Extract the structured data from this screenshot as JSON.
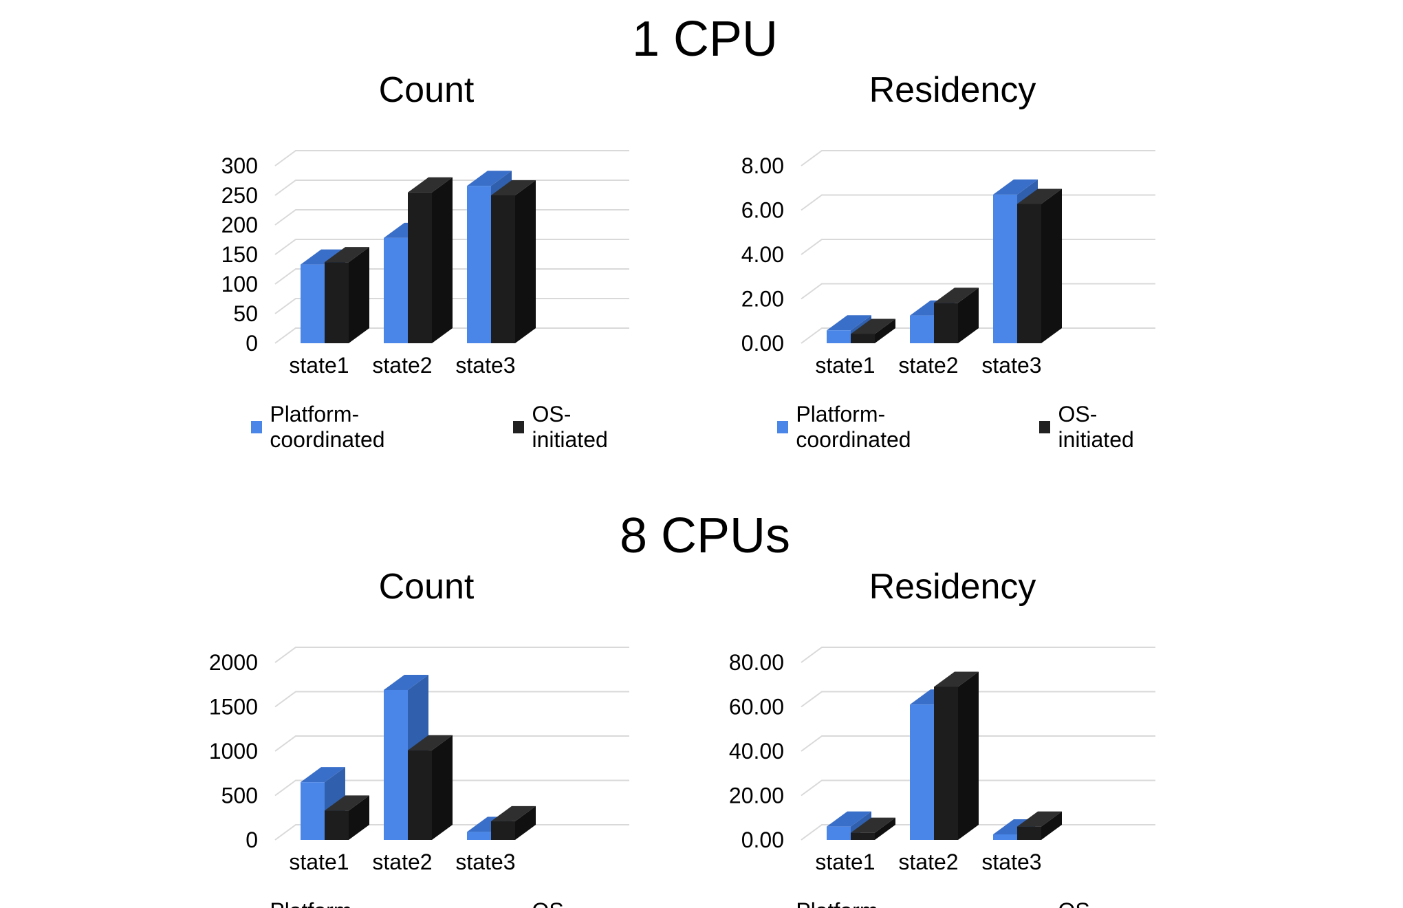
{
  "sections": [
    {
      "title": "1 CPU"
    },
    {
      "title": "8 CPUs"
    }
  ],
  "legend": {
    "items": [
      {
        "label": "Platform-coordinated",
        "color": "#4a86e8"
      },
      {
        "label": "OS-initiated",
        "color": "#212121"
      }
    ]
  },
  "colors": {
    "platform_front": "#4a86e8",
    "platform_top": "#3a6fc9",
    "platform_side": "#3060ad",
    "os_front": "#1d1d1d",
    "os_top": "#2f2f2f",
    "os_side": "#101010",
    "gridline": "#d9d9d9",
    "text": "#000000",
    "background": "#ffffff"
  },
  "chart_data": [
    {
      "type": "bar",
      "style": "3d-column",
      "group": "1 CPU",
      "title": "Count",
      "categories": [
        "state1",
        "state2",
        "state3"
      ],
      "series": [
        {
          "name": "Platform-coordinated",
          "values": [
            133,
            178,
            266
          ]
        },
        {
          "name": "OS-initiated",
          "values": [
            137,
            255,
            250
          ]
        }
      ],
      "ylim": [
        0,
        300
      ],
      "y_tick_labels": [
        "300",
        "250",
        "200",
        "150",
        "100",
        "50",
        "0"
      ],
      "xlabel": "",
      "ylabel": "",
      "grid": true,
      "legend_position": "bottom"
    },
    {
      "type": "bar",
      "style": "3d-column",
      "group": "1 CPU",
      "title": "Residency",
      "categories": [
        "state1",
        "state2",
        "state3"
      ],
      "series": [
        {
          "name": "Platform-coordinated",
          "values": [
            0.58,
            1.25,
            6.7
          ]
        },
        {
          "name": "OS-initiated",
          "values": [
            0.42,
            1.82,
            6.28
          ]
        }
      ],
      "ylim": [
        0,
        8
      ],
      "y_tick_labels": [
        "8.00",
        "6.00",
        "4.00",
        "2.00",
        "0.00"
      ],
      "xlabel": "",
      "ylabel": "",
      "grid": true,
      "legend_position": "bottom"
    },
    {
      "type": "bar",
      "style": "3d-column",
      "group": "8 CPUs",
      "title": "Count",
      "categories": [
        "state1",
        "state2",
        "state3"
      ],
      "series": [
        {
          "name": "Platform-coordinated",
          "values": [
            650,
            1690,
            90
          ]
        },
        {
          "name": "OS-initiated",
          "values": [
            330,
            1010,
            210
          ]
        }
      ],
      "ylim": [
        0,
        2000
      ],
      "y_tick_labels": [
        "2000",
        "1500",
        "1000",
        "500",
        "0"
      ],
      "xlabel": "",
      "ylabel": "",
      "grid": true,
      "legend_position": "bottom"
    },
    {
      "type": "bar",
      "style": "3d-column",
      "group": "8 CPUs",
      "title": "Residency",
      "categories": [
        "state1",
        "state2",
        "state3"
      ],
      "series": [
        {
          "name": "Platform-coordinated",
          "values": [
            6.0,
            61.0,
            2.5
          ]
        },
        {
          "name": "OS-initiated",
          "values": [
            3.2,
            69.0,
            6.0
          ]
        }
      ],
      "ylim": [
        0,
        80
      ],
      "y_tick_labels": [
        "80.00",
        "60.00",
        "40.00",
        "20.00",
        "0.00"
      ],
      "xlabel": "",
      "ylabel": "",
      "grid": true,
      "legend_position": "bottom"
    }
  ]
}
